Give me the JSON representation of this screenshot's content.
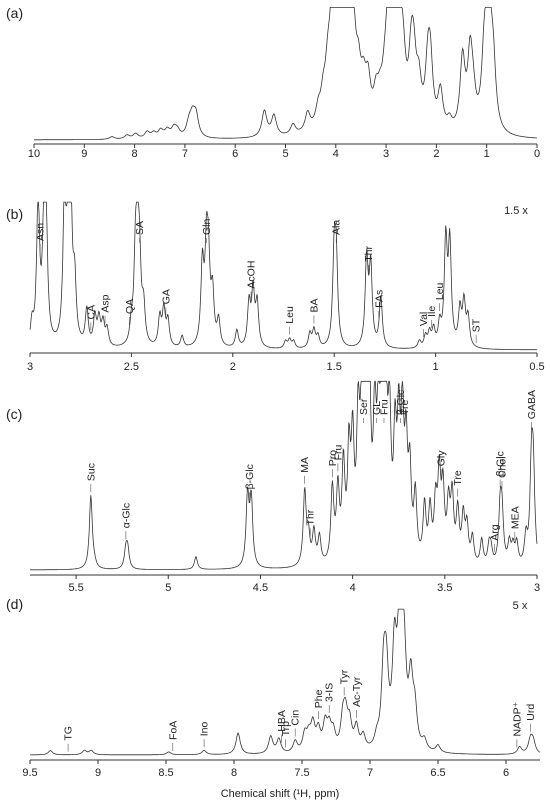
{
  "chart_data": [
    {
      "type": "line",
      "panel_label": "(a)",
      "scale_text": "",
      "xlabel": "",
      "xlim": [
        10,
        0
      ],
      "xticks": [
        "10",
        "9",
        "8",
        "7",
        "6",
        "5",
        "4",
        "3",
        "2",
        "1",
        "0"
      ],
      "peaks": [
        [
          8.45,
          0.02
        ],
        [
          8.15,
          0.03
        ],
        [
          7.98,
          0.04
        ],
        [
          7.75,
          0.05
        ],
        [
          7.62,
          0.04
        ],
        [
          7.48,
          0.06
        ],
        [
          7.35,
          0.06
        ],
        [
          7.22,
          0.07
        ],
        [
          7.15,
          0.05
        ],
        [
          6.92,
          0.1
        ],
        [
          6.85,
          0.14
        ],
        [
          6.78,
          0.16
        ],
        [
          5.42,
          0.2
        ],
        [
          5.23,
          0.16
        ],
        [
          4.85,
          0.08
        ],
        [
          4.56,
          0.14
        ],
        [
          4.35,
          0.12
        ],
        [
          4.25,
          0.18
        ],
        [
          4.16,
          0.3
        ],
        [
          4.08,
          0.45
        ],
        [
          4.0,
          0.6
        ],
        [
          3.95,
          0.85
        ],
        [
          3.9,
          0.95
        ],
        [
          3.86,
          0.9
        ],
        [
          3.82,
          0.8
        ],
        [
          3.77,
          0.6
        ],
        [
          3.72,
          0.5
        ],
        [
          3.65,
          0.4
        ],
        [
          3.55,
          0.3
        ],
        [
          3.45,
          0.25
        ],
        [
          3.36,
          0.3
        ],
        [
          3.2,
          0.2
        ],
        [
          3.12,
          0.15
        ],
        [
          3.03,
          0.2
        ],
        [
          2.94,
          0.9
        ],
        [
          2.86,
          0.8
        ],
        [
          2.8,
          0.85
        ],
        [
          2.72,
          0.4
        ],
        [
          2.66,
          0.35
        ],
        [
          2.5,
          0.45
        ],
        [
          2.45,
          0.4
        ],
        [
          2.35,
          0.3
        ],
        [
          2.17,
          0.42
        ],
        [
          2.12,
          0.45
        ],
        [
          1.92,
          0.3
        ],
        [
          1.74,
          0.08
        ],
        [
          1.48,
          0.55
        ],
        [
          1.33,
          0.55
        ],
        [
          1.27,
          0.2
        ],
        [
          1.05,
          0.48
        ],
        [
          0.99,
          0.45
        ],
        [
          0.94,
          0.55
        ],
        [
          0.87,
          0.45
        ]
      ]
    },
    {
      "type": "line",
      "panel_label": "(b)",
      "scale_text": "1.5 x",
      "xlabel": "",
      "xlim": [
        3,
        0.5
      ],
      "xticks": [
        "3",
        "2.5",
        "2",
        "1.5",
        "1",
        "0.5"
      ],
      "peaks": [
        [
          2.96,
          1.0
        ],
        [
          2.93,
          0.95
        ],
        [
          2.92,
          0.6
        ],
        [
          2.99,
          0.15
        ],
        [
          2.83,
          0.95
        ],
        [
          2.81,
          0.92
        ],
        [
          2.8,
          0.85
        ],
        [
          2.78,
          0.4
        ],
        [
          2.72,
          0.25
        ],
        [
          2.68,
          0.2
        ],
        [
          2.66,
          0.18
        ],
        [
          2.64,
          0.16
        ],
        [
          2.62,
          0.12
        ],
        [
          2.5,
          0.12
        ],
        [
          2.48,
          0.55
        ],
        [
          2.47,
          0.6
        ],
        [
          2.46,
          0.5
        ],
        [
          2.44,
          0.25
        ],
        [
          2.36,
          0.2
        ],
        [
          2.34,
          0.25
        ],
        [
          2.32,
          0.18
        ],
        [
          2.25,
          0.08
        ],
        [
          2.15,
          0.55
        ],
        [
          2.13,
          0.6
        ],
        [
          2.12,
          0.5
        ],
        [
          2.1,
          0.35
        ],
        [
          2.07,
          0.18
        ],
        [
          1.98,
          0.12
        ],
        [
          1.92,
          0.3
        ],
        [
          1.9,
          0.38
        ],
        [
          1.88,
          0.3
        ],
        [
          1.74,
          0.05
        ],
        [
          1.72,
          0.06
        ],
        [
          1.7,
          0.05
        ],
        [
          1.62,
          0.1
        ],
        [
          1.6,
          0.12
        ],
        [
          1.58,
          0.08
        ],
        [
          1.5,
          0.6
        ],
        [
          1.49,
          0.55
        ],
        [
          1.34,
          0.6
        ],
        [
          1.32,
          0.55
        ],
        [
          1.27,
          0.35
        ],
        [
          1.08,
          0.05
        ],
        [
          1.05,
          0.08
        ],
        [
          1.03,
          0.1
        ],
        [
          1.01,
          0.12
        ],
        [
          0.98,
          0.15
        ],
        [
          0.95,
          0.72
        ],
        [
          0.93,
          0.7
        ],
        [
          0.88,
          0.25
        ],
        [
          0.86,
          0.3
        ],
        [
          0.84,
          0.2
        ]
      ],
      "annotations": [
        {
          "label": "Asn",
          "x": 2.95
        },
        {
          "label": "CA",
          "x": 2.7
        },
        {
          "label": "Asp",
          "x": 2.63
        },
        {
          "label": "QA",
          "x": 2.51
        },
        {
          "label": "SA",
          "x": 2.46
        },
        {
          "label": "GA",
          "x": 2.33
        },
        {
          "label": "Gln",
          "x": 2.13
        },
        {
          "label": "AcOH",
          "x": 1.91
        },
        {
          "label": "Leu",
          "x": 1.72
        },
        {
          "label": "BA",
          "x": 1.6
        },
        {
          "label": "Ala",
          "x": 1.49
        },
        {
          "label": "Thr",
          "x": 1.33
        },
        {
          "label": "FAs",
          "x": 1.28
        },
        {
          "label": "Val",
          "x": 1.06
        },
        {
          "label": "Ile",
          "x": 1.02
        },
        {
          "label": "Leu",
          "x": 0.98
        },
        {
          "label": "ST",
          "x": 0.8
        }
      ]
    },
    {
      "type": "line",
      "panel_label": "(c)",
      "scale_text": "",
      "xlabel": "",
      "xlim": [
        5.75,
        3.0
      ],
      "xticks": [
        "5.5",
        "5",
        "4.5",
        "4",
        "3.5",
        "3"
      ],
      "peaks": [
        [
          5.42,
          0.4
        ],
        [
          5.4,
          0.02
        ],
        [
          5.23,
          0.1
        ],
        [
          5.22,
          0.1
        ],
        [
          4.85,
          0.07
        ],
        [
          4.57,
          0.38
        ],
        [
          4.55,
          0.36
        ],
        [
          4.26,
          0.4
        ],
        [
          4.24,
          0.15
        ],
        [
          4.21,
          0.18
        ],
        [
          4.18,
          0.15
        ],
        [
          4.11,
          0.4
        ],
        [
          4.08,
          0.38
        ],
        [
          4.05,
          0.5
        ],
        [
          4.02,
          0.55
        ],
        [
          4.0,
          0.6
        ],
        [
          3.97,
          0.7
        ],
        [
          3.95,
          0.75
        ],
        [
          3.93,
          0.98
        ],
        [
          3.91,
          0.9
        ],
        [
          3.88,
          0.7
        ],
        [
          3.86,
          0.65
        ],
        [
          3.84,
          0.95
        ],
        [
          3.82,
          0.8
        ],
        [
          3.8,
          0.7
        ],
        [
          3.77,
          0.6
        ],
        [
          3.75,
          0.65
        ],
        [
          3.73,
          0.7
        ],
        [
          3.71,
          0.55
        ],
        [
          3.69,
          0.45
        ],
        [
          3.66,
          0.35
        ],
        [
          3.61,
          0.3
        ],
        [
          3.58,
          0.28
        ],
        [
          3.55,
          0.3
        ],
        [
          3.53,
          0.45
        ],
        [
          3.51,
          0.38
        ],
        [
          3.48,
          0.3
        ],
        [
          3.46,
          0.35
        ],
        [
          3.43,
          0.28
        ],
        [
          3.4,
          0.25
        ],
        [
          3.38,
          0.2
        ],
        [
          3.35,
          0.15
        ],
        [
          3.3,
          0.14
        ],
        [
          3.26,
          0.1
        ],
        [
          3.25,
          0.08
        ],
        [
          3.2,
          0.28
        ],
        [
          3.19,
          0.26
        ],
        [
          3.15,
          0.12
        ],
        [
          3.13,
          0.1
        ],
        [
          3.11,
          0.12
        ],
        [
          3.06,
          0.15
        ],
        [
          3.03,
          0.5
        ],
        [
          3.02,
          0.45
        ]
      ],
      "annotations": [
        {
          "label": "Suc",
          "x": 5.42
        },
        {
          "label": "α-Glc",
          "x": 5.23
        },
        {
          "label": "β-Glc",
          "x": 4.56
        },
        {
          "label": "MA",
          "x": 4.26
        },
        {
          "label": "Thr",
          "x": 4.23
        },
        {
          "label": "Pro",
          "x": 4.11
        },
        {
          "label": "Fru",
          "x": 4.08
        },
        {
          "label": "Ser",
          "x": 3.94
        },
        {
          "label": "GL",
          "x": 3.87
        },
        {
          "label": "Fru",
          "x": 3.83
        },
        {
          "label": "β-Glc",
          "x": 3.74
        },
        {
          "label": "Tre",
          "x": 3.72
        },
        {
          "label": "Gly",
          "x": 3.52
        },
        {
          "label": "Tre",
          "x": 3.43
        },
        {
          "label": "Arg",
          "x": 3.23
        },
        {
          "label": "β-Glc",
          "x": 3.2
        },
        {
          "label": "Chol",
          "x": 3.19
        },
        {
          "label": "MEA",
          "x": 3.12
        },
        {
          "label": "GABA",
          "x": 3.03
        }
      ]
    },
    {
      "type": "line",
      "panel_label": "(d)",
      "scale_text": "5 x",
      "xlabel": "Chemical shift (¹H, ppm)",
      "xlim": [
        9.5,
        5.75
      ],
      "xticks": [
        "9.5",
        "9",
        "8.5",
        "8",
        "7.5",
        "7",
        "6.5",
        "6"
      ],
      "peaks": [
        [
          9.35,
          0.03
        ],
        [
          9.1,
          0.03
        ],
        [
          9.05,
          0.03
        ],
        [
          8.48,
          0.02
        ],
        [
          8.22,
          0.03
        ],
        [
          7.97,
          0.15
        ],
        [
          7.73,
          0.12
        ],
        [
          7.67,
          0.1
        ],
        [
          7.55,
          0.08
        ],
        [
          7.48,
          0.12
        ],
        [
          7.45,
          0.1
        ],
        [
          7.42,
          0.18
        ],
        [
          7.38,
          0.14
        ],
        [
          7.33,
          0.18
        ],
        [
          7.3,
          0.15
        ],
        [
          7.27,
          0.12
        ],
        [
          7.2,
          0.2
        ],
        [
          7.18,
          0.22
        ],
        [
          7.15,
          0.18
        ],
        [
          7.1,
          0.16
        ],
        [
          7.05,
          0.1
        ],
        [
          6.95,
          0.07
        ],
        [
          6.9,
          0.5
        ],
        [
          6.88,
          0.48
        ],
        [
          6.82,
          0.65
        ],
        [
          6.78,
          1.0
        ],
        [
          6.75,
          0.6
        ],
        [
          6.7,
          0.45
        ],
        [
          6.67,
          0.25
        ],
        [
          6.6,
          0.07
        ],
        [
          6.5,
          0.05
        ],
        [
          5.9,
          0.05
        ],
        [
          5.82,
          0.1
        ],
        [
          5.8,
          0.08
        ]
      ],
      "annotations": [
        {
          "label": "TG",
          "x": 9.22
        },
        {
          "label": "FoA",
          "x": 8.45
        },
        {
          "label": "Ino",
          "x": 8.22
        },
        {
          "label": "Trp",
          "x": 7.62
        },
        {
          "label": "HBA",
          "x": 7.65
        },
        {
          "label": "Cin",
          "x": 7.55
        },
        {
          "label": "Phe",
          "x": 7.38
        },
        {
          "label": "3-IS",
          "x": 7.3
        },
        {
          "label": "Tyr",
          "x": 7.19
        },
        {
          "label": "Ac-Tyr",
          "x": 7.1
        },
        {
          "label": "NADP⁺",
          "x": 5.92
        },
        {
          "label": "Urd",
          "x": 5.82
        }
      ]
    }
  ]
}
